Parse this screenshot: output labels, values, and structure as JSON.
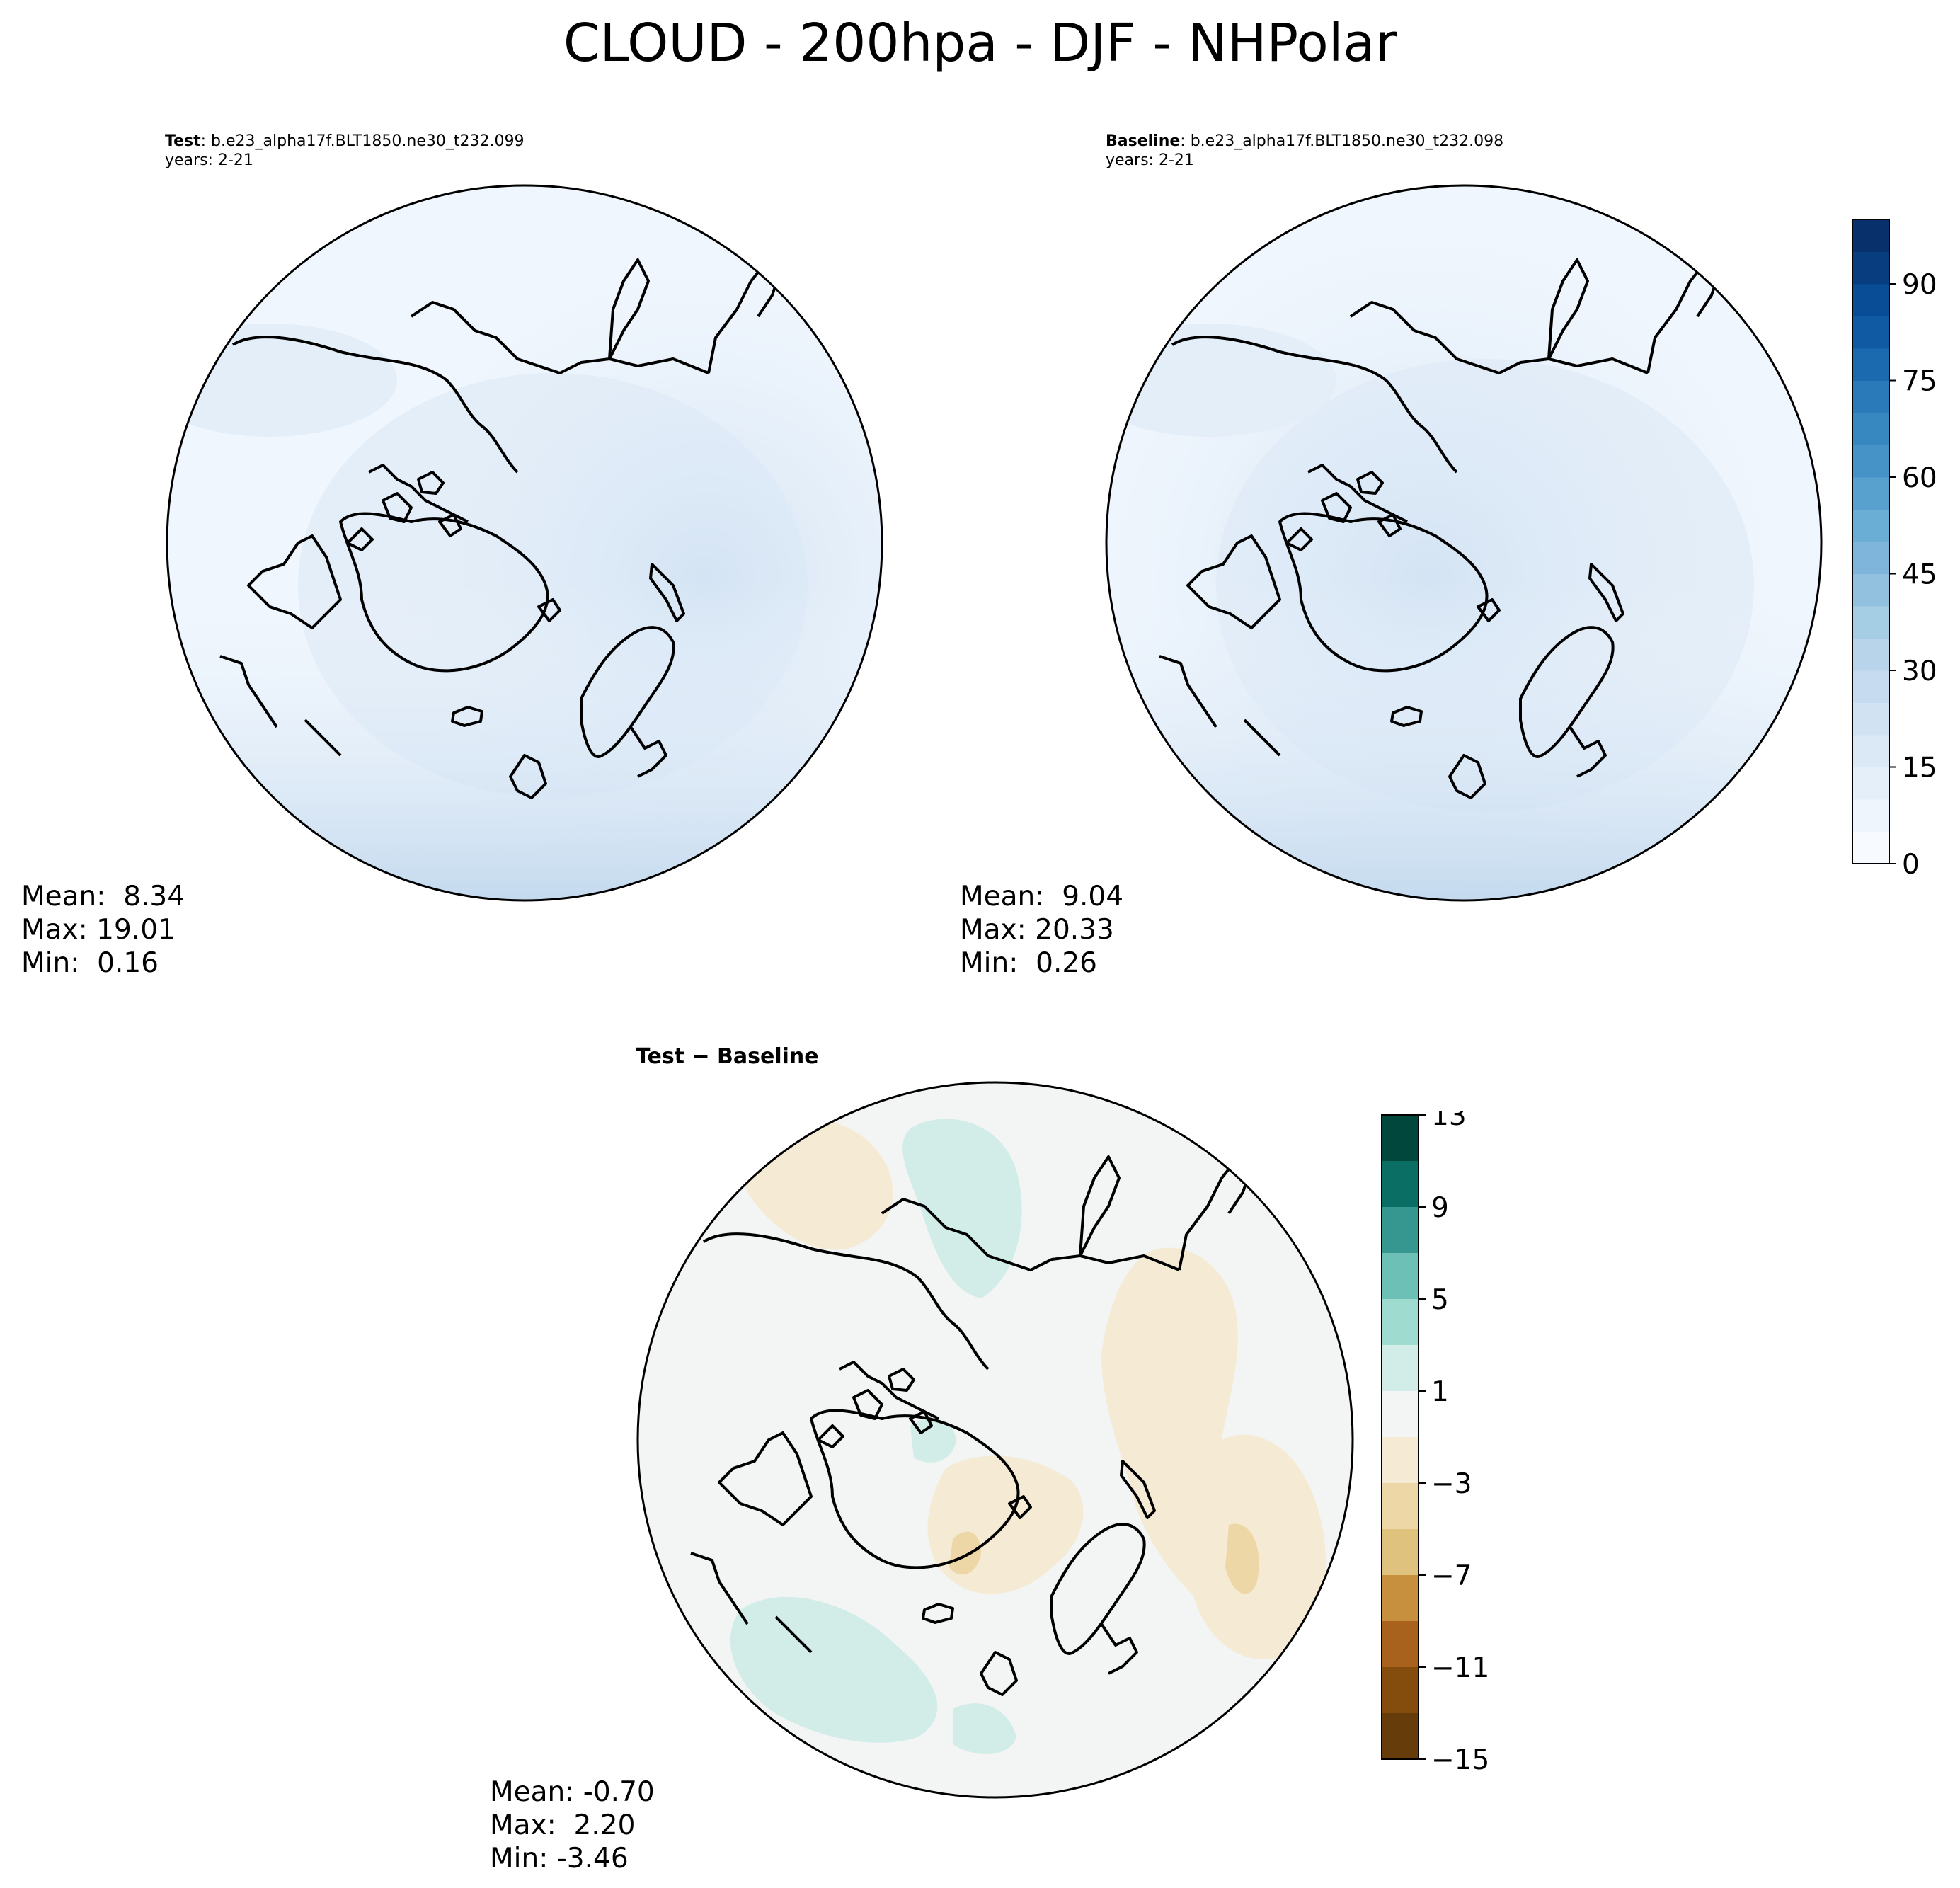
{
  "figure": {
    "title": "CLOUD - 200hpa - DJF - NHPolar"
  },
  "panels": [
    {
      "id": "test",
      "case_label": "Test",
      "case_name": ": b.e23_alpha17f.BLT1850.ne30_t232.099",
      "years": "years: 2-21",
      "stats": {
        "mean": "Mean:  8.34",
        "max": "Max: 19.01",
        "min": "Min:  0.16"
      }
    },
    {
      "id": "baseline",
      "case_label": "Baseline",
      "case_name": ": b.e23_alpha17f.BLT1850.ne30_t232.098",
      "years": "years: 2-21",
      "stats": {
        "mean": "Mean:  9.04",
        "max": "Max: 20.33",
        "min": "Min:  0.26"
      }
    },
    {
      "id": "diff",
      "case_label": "Test − Baseline",
      "stats": {
        "mean": "Mean: -0.70",
        "max": "Max:  2.20",
        "min": "Min: -3.46"
      }
    }
  ],
  "colorbars": {
    "main": {
      "colormap": "Blues",
      "range": [
        0,
        100
      ],
      "levels": 20,
      "ticks": [
        "0",
        "15",
        "30",
        "45",
        "60",
        "75",
        "90"
      ],
      "colors": [
        "#f7fbff",
        "#eef5fc",
        "#e4eff9",
        "#dbe9f6",
        "#d1e2f2",
        "#c6dbef",
        "#b7d4ea",
        "#a5cde3",
        "#92c0df",
        "#7fb5da",
        "#6aaed6",
        "#58a1cf",
        "#4694c7",
        "#3787c0",
        "#2a7ab9",
        "#1b69af",
        "#0f5aa3",
        "#084d96",
        "#083e80",
        "#08306b"
      ]
    },
    "diff": {
      "colormap": "BrBG",
      "range": [
        -15,
        13
      ],
      "levels": 14,
      "ticks": [
        "13",
        "9",
        "5",
        "1",
        "−3",
        "−7",
        "−11",
        "−15"
      ],
      "colors_top_to_bottom": [
        "#01473c",
        "#0b6e65",
        "#35978f",
        "#6cc0b5",
        "#9fdbcf",
        "#d2ede8",
        "#f3f5f4",
        "#f5ead3",
        "#eed7a7",
        "#dfc27d",
        "#c6903f",
        "#a9621e",
        "#854d0d",
        "#653c0a"
      ]
    }
  },
  "map_fill": {
    "test": {
      "ocean": "#f0f6fd",
      "mid": "#e4eef9",
      "high": "#d4e4f4",
      "peak": "#c3d9ee"
    },
    "baseline": {
      "ocean": "#f0f6fd",
      "mid": "#e4eef9",
      "high": "#d4e4f4",
      "peak": "#c3d9ee"
    },
    "diff": {
      "neutral": "#f3f5f4",
      "neg": "#f5ead3",
      "neg2": "#eed7a7",
      "pos": "#d2ede8"
    }
  }
}
